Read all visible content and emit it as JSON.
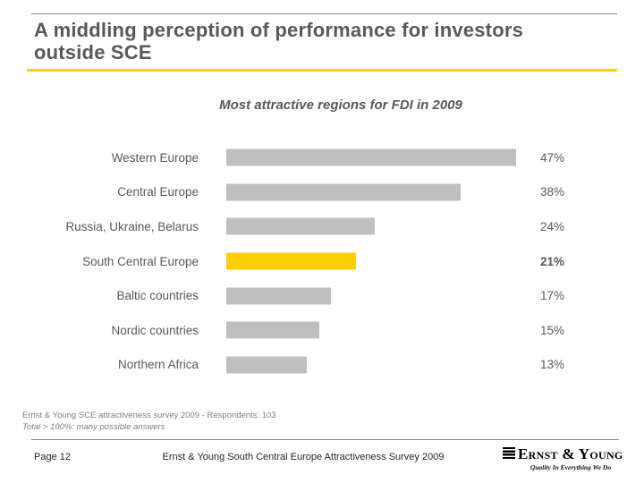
{
  "slide": {
    "title": "A middling perception of performance for investors outside SCE",
    "footnotes": {
      "line1": "Ernst & Young SCE attractiveness survey 2009 - Respondents: 103",
      "line2": "Total > 100%: many possible answers"
    },
    "footer": {
      "page_label": "Page 12",
      "center_text": "Ernst & Young South Central Europe Attractiveness Survey 2009",
      "logo_wordmark": "Ernst & Young",
      "logo_tagline": "Quality In Everything We Do"
    }
  },
  "chart_data": {
    "type": "bar",
    "orientation": "horizontal",
    "title": "Most attractive regions for FDI in 2009",
    "categories": [
      "Western Europe",
      "Central Europe",
      "Russia, Ukraine, Belarus",
      "South Central Europe",
      "Baltic countries",
      "Nordic countries",
      "Northern Africa"
    ],
    "values": [
      47,
      38,
      24,
      21,
      17,
      15,
      13
    ],
    "value_labels": [
      "47%",
      "38%",
      "24%",
      "21%",
      "17%",
      "15%",
      "13%"
    ],
    "highlight_index": 3,
    "xlim": [
      0,
      50
    ],
    "grid": false,
    "legend": false,
    "colors": {
      "bar_default": "#BFBFBF",
      "bar_highlight": "#FFCE00",
      "text": "#595959"
    }
  },
  "theme": {
    "accent_yellow": "#FFCE00",
    "title_gray": "#595959",
    "footnote_gray": "#7F7F7F",
    "rule_gray": "#8C8C8C"
  }
}
